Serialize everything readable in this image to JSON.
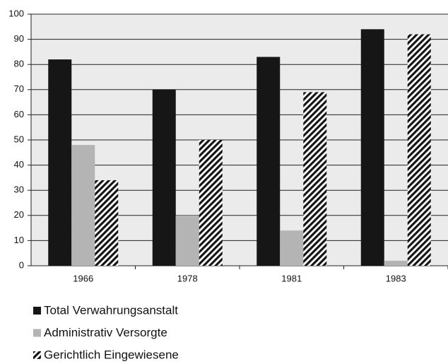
{
  "chart_data": {
    "type": "bar",
    "categories": [
      "1966",
      "1978",
      "1981",
      "1983"
    ],
    "series": [
      {
        "name": "Total Verwahrungsanstalt",
        "color": "#161616",
        "values": [
          82,
          70,
          83,
          94
        ]
      },
      {
        "name": "Administrativ Versorgte",
        "color": "#b4b4b4",
        "values": [
          48,
          20,
          14,
          2
        ]
      },
      {
        "name": "Gerichtlich Eingewiesene",
        "color": "#161616",
        "pattern": "hatch",
        "values": [
          34,
          50,
          69,
          92
        ]
      }
    ],
    "ylim": [
      0,
      100
    ],
    "yticks": [
      0,
      10,
      20,
      30,
      40,
      50,
      60,
      70,
      80,
      90,
      100
    ],
    "grid": true,
    "legend": "bottom"
  }
}
